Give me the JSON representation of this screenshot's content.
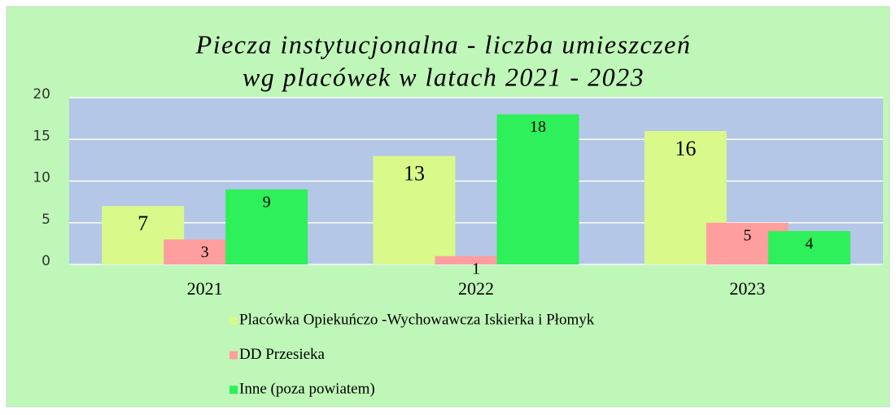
{
  "chart_data": {
    "type": "bar",
    "title": [
      "Piecza instytucjonalna - liczba umieszczeń",
      "wg placówek w latach 2021 - 2023"
    ],
    "categories": [
      "2021",
      "2022",
      "2023"
    ],
    "series": [
      {
        "name": "Placówka Opiekuńczo -Wychowawcza Iskierka i Płomyk",
        "color": "#d9f98a",
        "values": [
          7,
          13,
          16
        ]
      },
      {
        "name": "DD Przesieka",
        "color": "#ff9e9e",
        "values": [
          3,
          1,
          5
        ]
      },
      {
        "name": "Inne (poza powiatem)",
        "color": "#2ef05a",
        "values": [
          9,
          18,
          4
        ]
      }
    ],
    "ylim": [
      0,
      20
    ],
    "yticks": [
      0,
      5,
      10,
      15,
      20
    ],
    "grid": true
  }
}
